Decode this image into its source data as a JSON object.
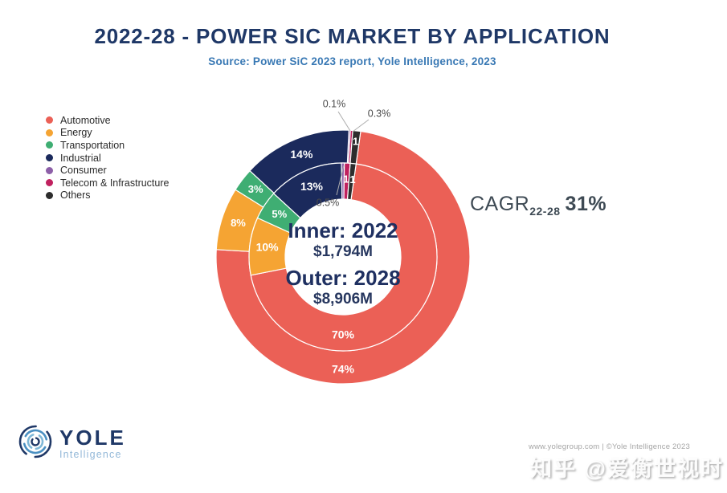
{
  "header": {
    "title": "2022-28 - POWER SIC MARKET BY APPLICATION",
    "subtitle": "Source: Power SiC 2023 report, Yole Intelligence, 2023"
  },
  "legend": {
    "items": [
      {
        "label": "Automotive",
        "color": "#EB6056"
      },
      {
        "label": "Energy",
        "color": "#F5A433"
      },
      {
        "label": "Transportation",
        "color": "#3FAE73"
      },
      {
        "label": "Industrial",
        "color": "#1B2A5C"
      },
      {
        "label": "Consumer",
        "color": "#8D5FA8"
      },
      {
        "label": "Telecom & Infrastructure",
        "color": "#C0215F"
      },
      {
        "label": "Others",
        "color": "#2D2D2D"
      }
    ]
  },
  "chart_data": {
    "type": "pie",
    "subtype": "double-ring-donut",
    "categories": [
      "Automotive",
      "Energy",
      "Transportation",
      "Industrial",
      "Consumer",
      "Telecom & Infrastructure",
      "Others"
    ],
    "colors": [
      "#EB6056",
      "#F5A433",
      "#3FAE73",
      "#1B2A5C",
      "#8D5FA8",
      "#C0215F",
      "#2D2D2D"
    ],
    "series": [
      {
        "name": "Inner: 2022",
        "total_value": "$1,794M",
        "values": [
          70,
          10,
          5,
          13,
          0.5,
          1,
          1
        ],
        "labels": [
          "70%",
          "10%",
          "5%",
          "13%",
          "0.5%",
          "1",
          "1"
        ]
      },
      {
        "name": "Outer: 2028",
        "total_value": "$8,906M",
        "values": [
          74,
          8,
          3,
          14,
          0.1,
          0.3,
          1
        ],
        "labels": [
          "74%",
          "8%",
          "3%",
          "14%",
          "0.1%",
          "0.3%",
          "1"
        ]
      }
    ],
    "center": {
      "inner_title": "Inner: 2022",
      "inner_value": "$1,794M",
      "outer_title": "Outer: 2028",
      "outer_value": "$8,906M"
    },
    "cagr": {
      "prefix": "CAGR",
      "subscript": "22-28",
      "value": "31%"
    },
    "legend_position": "left",
    "units": "percent of market value"
  },
  "footer": {
    "logo_name": "YOLE",
    "logo_sub": "Intelligence",
    "credit": "www.yolegroup.com | ©Yole Intelligence 2023",
    "watermark": "知乎 @爱衡世视时"
  }
}
